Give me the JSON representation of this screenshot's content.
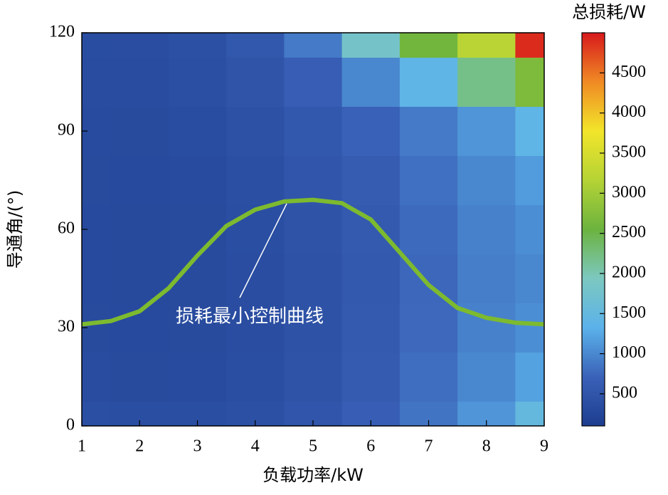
{
  "chart_data": {
    "type": "contour",
    "xlabel": "负载功率/kW",
    "ylabel": "导通角/(°)",
    "colorbar_label": "总损耗/W",
    "annotation": "损耗最小控制曲线",
    "x": [
      1,
      2,
      3,
      4,
      5,
      6,
      7,
      8,
      9
    ],
    "y": [
      0,
      15,
      30,
      45,
      60,
      75,
      90,
      105,
      120
    ],
    "z": [
      [
        400,
        380,
        380,
        420,
        500,
        650,
        850,
        1100,
        1500
      ],
      [
        350,
        330,
        340,
        380,
        460,
        600,
        800,
        1000,
        1200
      ],
      [
        330,
        320,
        330,
        370,
        450,
        580,
        760,
        950,
        1050
      ],
      [
        320,
        310,
        330,
        370,
        450,
        570,
        750,
        930,
        1000
      ],
      [
        320,
        310,
        330,
        380,
        460,
        580,
        770,
        950,
        1050
      ],
      [
        330,
        320,
        340,
        400,
        500,
        620,
        820,
        1000,
        1150
      ],
      [
        340,
        330,
        360,
        430,
        550,
        700,
        900,
        1100,
        1400
      ],
      [
        350,
        350,
        390,
        480,
        650,
        1000,
        1400,
        2200,
        2700
      ],
      [
        360,
        370,
        420,
        550,
        900,
        1800,
        2600,
        3200,
        4900
      ]
    ],
    "colormap": [
      "#1d3d8f",
      "#3a62b8",
      "#5bb2ea",
      "#7cc8c0",
      "#6cb33f",
      "#b5d335",
      "#f2e52a",
      "#f08a24",
      "#d7191c"
    ],
    "clim": [
      100,
      5000
    ],
    "cticks": [
      500,
      1000,
      1500,
      2000,
      2500,
      3000,
      3500,
      4000,
      4500
    ],
    "xlim": [
      1,
      9
    ],
    "xticks": [
      1,
      2,
      3,
      4,
      5,
      6,
      7,
      8,
      9
    ],
    "ylim": [
      0,
      120
    ],
    "yticks": [
      0,
      30,
      60,
      90,
      120
    ],
    "curve": {
      "color": "#7dba2f",
      "x": [
        1,
        1.5,
        2,
        2.5,
        3,
        3.5,
        4,
        4.5,
        5,
        5.5,
        6,
        6.5,
        7,
        7.5,
        8,
        8.5,
        9
      ],
      "values": [
        31,
        32,
        35,
        42,
        52,
        61,
        66,
        68.5,
        69,
        68,
        63,
        53,
        43,
        36,
        33,
        31.5,
        31
      ]
    }
  }
}
